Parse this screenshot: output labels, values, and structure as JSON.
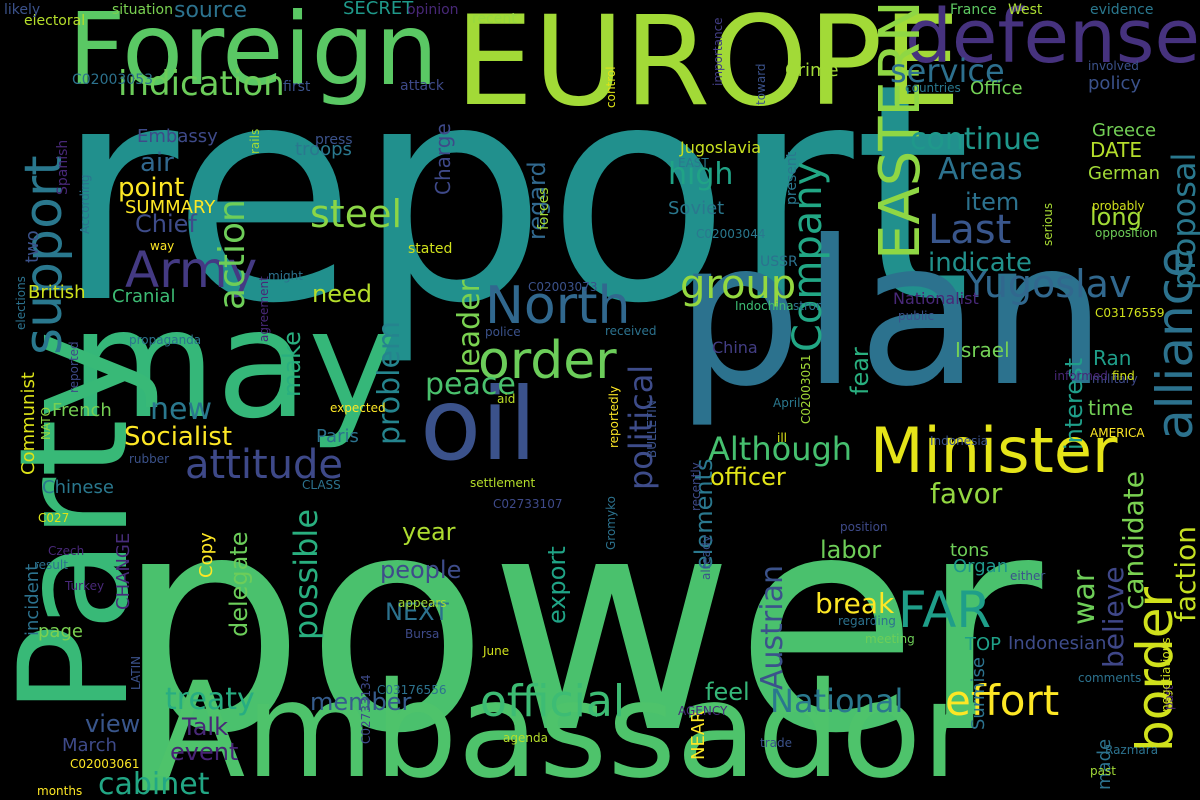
{
  "words": [
    {
      "text": "report",
      "color": "#21908d"
    },
    {
      "text": "power",
      "color": "#4ac16d"
    },
    {
      "text": "plan",
      "color": "#2c728e"
    },
    {
      "text": "may",
      "color": "#35b779"
    },
    {
      "text": "Party",
      "color": "#38b977"
    },
    {
      "text": "Ambassador",
      "color": "#4ec36b"
    },
    {
      "text": "EUROPE",
      "color": "#a2da37"
    },
    {
      "text": "Foreign",
      "color": "#5ac864"
    },
    {
      "text": "oil",
      "color": "#3b528b"
    },
    {
      "text": "defense",
      "color": "#46327e"
    },
    {
      "text": "Minister",
      "color": "#e5e419"
    },
    {
      "text": "EASTERN",
      "color": "#8fd744"
    },
    {
      "text": "North",
      "color": "#31688e"
    },
    {
      "text": "order",
      "color": "#6ccd5a"
    },
    {
      "text": "support",
      "color": "#2a788e"
    },
    {
      "text": "Army",
      "color": "#443a83"
    },
    {
      "text": "FAR",
      "color": "#1f9e89"
    },
    {
      "text": "border",
      "color": "#d0e11c"
    },
    {
      "text": "alliance",
      "color": "#2c728e"
    },
    {
      "text": "official",
      "color": "#3dbc74"
    },
    {
      "text": "effort",
      "color": "#fde725"
    },
    {
      "text": "Company",
      "color": "#22a785"
    },
    {
      "text": "attitude",
      "color": "#3e4989"
    },
    {
      "text": "group",
      "color": "#95d840"
    },
    {
      "text": "Yugoslav",
      "color": "#31688e"
    },
    {
      "text": "Last",
      "color": "#39568c"
    },
    {
      "text": "steel",
      "color": "#8bd646"
    },
    {
      "text": "action",
      "color": "#6ece58"
    },
    {
      "text": "indication",
      "color": "#6ccd5a"
    },
    {
      "text": "service",
      "color": "#2d708e"
    },
    {
      "text": "proposal",
      "color": "#2a788e"
    },
    {
      "text": "political",
      "color": "#3e4c8a"
    },
    {
      "text": "Although",
      "color": "#46c06f"
    },
    {
      "text": "National",
      "color": "#2a788e"
    },
    {
      "text": "possible",
      "color": "#29af7f"
    },
    {
      "text": "problem",
      "color": "#25848e"
    },
    {
      "text": "treaty",
      "color": "#27ad81"
    },
    {
      "text": "cabinet",
      "color": "#22a785"
    },
    {
      "text": "new",
      "color": "#2a788e"
    },
    {
      "text": "high",
      "color": "#20a386"
    },
    {
      "text": "Areas",
      "color": "#2c728e"
    },
    {
      "text": "continue",
      "color": "#1f988b"
    },
    {
      "text": "war",
      "color": "#6ece58"
    },
    {
      "text": "Austrian",
      "color": "#3b528b"
    },
    {
      "text": "peace",
      "color": "#4ac16d"
    },
    {
      "text": "leader",
      "color": "#7ad151"
    },
    {
      "text": "favor",
      "color": "#93d741"
    },
    {
      "text": "break",
      "color": "#fde725"
    },
    {
      "text": "faction",
      "color": "#c5e021"
    },
    {
      "text": "candidate",
      "color": "#7ad151"
    },
    {
      "text": "believe",
      "color": "#3f4788"
    },
    {
      "text": "Socialist",
      "color": "#fde725"
    },
    {
      "text": "indicate",
      "color": "#21918c"
    },
    {
      "text": "point",
      "color": "#fde725"
    },
    {
      "text": "air",
      "color": "#31688e"
    },
    {
      "text": "Chief",
      "color": "#3e4c8a"
    },
    {
      "text": "feel",
      "color": "#35b779"
    },
    {
      "text": "member",
      "color": "#365c8d"
    },
    {
      "text": "view",
      "color": "#39568c"
    },
    {
      "text": "labor",
      "color": "#6ece58"
    },
    {
      "text": "elements",
      "color": "#2a788e"
    },
    {
      "text": "officer",
      "color": "#e2e418"
    },
    {
      "text": "item",
      "color": "#2c728e"
    },
    {
      "text": "Talk",
      "color": "#482878"
    },
    {
      "text": "interest",
      "color": "#1f9e89"
    },
    {
      "text": "long",
      "color": "#a2da37"
    },
    {
      "text": "make",
      "color": "#29af7f"
    },
    {
      "text": "need",
      "color": "#b5de2b"
    },
    {
      "text": "fear",
      "color": "#29af7f"
    },
    {
      "text": "year",
      "color": "#addc30"
    },
    {
      "text": "people",
      "color": "#3e4c8a"
    },
    {
      "text": "NEXT",
      "color": "#2c728e"
    },
    {
      "text": "delegate",
      "color": "#6ccd5a"
    },
    {
      "text": "export",
      "color": "#20a386"
    },
    {
      "text": "regard",
      "color": "#31688e"
    },
    {
      "text": "event",
      "color": "#482475"
    },
    {
      "text": "time",
      "color": "#73d056"
    },
    {
      "text": "DATE",
      "color": "#b5de2b"
    },
    {
      "text": "Greece",
      "color": "#73d056"
    },
    {
      "text": "German",
      "color": "#a2da37"
    },
    {
      "text": "Israel",
      "color": "#73d056"
    },
    {
      "text": "Ran",
      "color": "#1f9e89"
    },
    {
      "text": "Crime",
      "color": "#a2da37"
    },
    {
      "text": "policy",
      "color": "#3b528b"
    },
    {
      "text": "Office",
      "color": "#73d056"
    },
    {
      "text": "troops",
      "color": "#2a788e"
    },
    {
      "text": "Embassy",
      "color": "#3e4a89"
    },
    {
      "text": "SUMMARY",
      "color": "#fde725"
    },
    {
      "text": "source",
      "color": "#2c728e"
    },
    {
      "text": "SECRET",
      "color": "#1f998a"
    },
    {
      "text": "Charge",
      "color": "#3e4989"
    },
    {
      "text": "Soviet",
      "color": "#2a788e"
    },
    {
      "text": "British",
      "color": "#d0e11c"
    },
    {
      "text": "Cranial",
      "color": "#3dbc74"
    },
    {
      "text": "French",
      "color": "#75d054"
    },
    {
      "text": "Paris",
      "color": "#2c728e"
    },
    {
      "text": "Chinese",
      "color": "#2a788e"
    },
    {
      "text": "Copy",
      "color": "#fde725"
    },
    {
      "text": "CHANGE",
      "color": "#472c7a"
    },
    {
      "text": "incident",
      "color": "#2c728e"
    },
    {
      "text": "page",
      "color": "#7ad151"
    },
    {
      "text": "March",
      "color": "#3e4a89"
    },
    {
      "text": "Organ",
      "color": "#1f988b"
    },
    {
      "text": "tons",
      "color": "#6ece58"
    },
    {
      "text": "made",
      "color": "#2c728e"
    },
    {
      "text": "Surmise",
      "color": "#2c728e"
    },
    {
      "text": "Indonesian",
      "color": "#3e4c8a"
    },
    {
      "text": "TOP",
      "color": "#1fa188"
    },
    {
      "text": "NEAR",
      "color": "#fde725"
    },
    {
      "text": "two",
      "color": "#3b528b"
    },
    {
      "text": "Communist",
      "color": "#dde318"
    },
    {
      "text": "Nationalist",
      "color": "#482878"
    },
    {
      "text": "China",
      "color": "#433e85"
    },
    {
      "text": "USSR",
      "color": "#2c728e"
    },
    {
      "text": "Jugoslavia",
      "color": "#c8e020"
    },
    {
      "text": "EAST",
      "color": "#2a788e"
    },
    {
      "text": "electoral",
      "color": "#b5de2b"
    },
    {
      "text": "France",
      "color": "#5ec962"
    },
    {
      "text": "West",
      "color": "#aadc32"
    },
    {
      "text": "evidence",
      "color": "#2a788e"
    },
    {
      "text": "situation",
      "color": "#7ad151"
    },
    {
      "text": "opinion",
      "color": "#482878"
    },
    {
      "text": "recent",
      "color": "#95d840"
    },
    {
      "text": "likely",
      "color": "#3b528b"
    },
    {
      "text": "Spanish",
      "color": "#482878"
    },
    {
      "text": "C02003053",
      "color": "#2c728e"
    },
    {
      "text": "first",
      "color": "#3b528b"
    },
    {
      "text": "attack",
      "color": "#3e4a89"
    },
    {
      "text": "control",
      "color": "#dde318"
    },
    {
      "text": "importance",
      "color": "#433e85"
    },
    {
      "text": "toward",
      "color": "#3b528b"
    },
    {
      "text": "countries",
      "color": "#2a788e"
    },
    {
      "text": "involved",
      "color": "#3b528b"
    },
    {
      "text": "probably",
      "color": "#d0e11c"
    },
    {
      "text": "serious",
      "color": "#a8db34"
    },
    {
      "text": "opposition",
      "color": "#6ece58"
    },
    {
      "text": "rails",
      "color": "#a2da37"
    },
    {
      "text": "press",
      "color": "#3b528b"
    },
    {
      "text": "forces",
      "color": "#a2da37"
    },
    {
      "text": "present",
      "color": "#2a788e"
    },
    {
      "text": "C02003044",
      "color": "#2a788e"
    },
    {
      "text": "way",
      "color": "#fde725"
    },
    {
      "text": "stated",
      "color": "#d0e11c"
    },
    {
      "text": "might",
      "color": "#2c728e"
    },
    {
      "text": "C02003073",
      "color": "#3b528b"
    },
    {
      "text": "According",
      "color": "#2c728e"
    },
    {
      "text": "elections",
      "color": "#2c728e"
    },
    {
      "text": "propaganda",
      "color": "#2c728e"
    },
    {
      "text": "agreement",
      "color": "#482878"
    },
    {
      "text": "police",
      "color": "#3b528b"
    },
    {
      "text": "received",
      "color": "#2c728e"
    },
    {
      "text": "Indochina",
      "color": "#3dbc74"
    },
    {
      "text": "strong",
      "color": "#2c728e"
    },
    {
      "text": "public",
      "color": "#3b528b"
    },
    {
      "text": "C03176559",
      "color": "#d0e11c"
    },
    {
      "text": "C02003051",
      "color": "#a2da37"
    },
    {
      "text": "military",
      "color": "#3e4a89"
    },
    {
      "text": "NATO",
      "color": "#95d840"
    },
    {
      "text": "reported",
      "color": "#3e4a89"
    },
    {
      "text": "expected",
      "color": "#fde725"
    },
    {
      "text": "aid",
      "color": "#bddf26"
    },
    {
      "text": "BULLETIN",
      "color": "#3b528b"
    },
    {
      "text": "reportedly",
      "color": "#fde725"
    },
    {
      "text": "April",
      "color": "#2a788e"
    },
    {
      "text": "ill",
      "color": "#dde318"
    },
    {
      "text": "Indonesia",
      "color": "#3b528b"
    },
    {
      "text": "AMERICA",
      "color": "#fde725"
    },
    {
      "text": "rubber",
      "color": "#3b528b"
    },
    {
      "text": "CLASS",
      "color": "#2c728e"
    },
    {
      "text": "settlement",
      "color": "#b5de2b"
    },
    {
      "text": "recently",
      "color": "#3e4a89"
    },
    {
      "text": "C02733107",
      "color": "#3e4a89"
    },
    {
      "text": "C027",
      "color": "#dde318"
    },
    {
      "text": "Czech",
      "color": "#482878"
    },
    {
      "text": "result",
      "color": "#2c728e"
    },
    {
      "text": "Turkey",
      "color": "#482878"
    },
    {
      "text": "appears",
      "color": "#a2da37"
    },
    {
      "text": "Bursa",
      "color": "#3e4a89"
    },
    {
      "text": "Gromyko",
      "color": "#2c728e"
    },
    {
      "text": "already",
      "color": "#3b528b"
    },
    {
      "text": "position",
      "color": "#3e4a89"
    },
    {
      "text": "regarding",
      "color": "#2c728e"
    },
    {
      "text": "meeting",
      "color": "#6ece58"
    },
    {
      "text": "either",
      "color": "#3b528b"
    },
    {
      "text": "part",
      "color": "#482878"
    },
    {
      "text": "June",
      "color": "#d0e11c"
    },
    {
      "text": "C03176556",
      "color": "#2c728e"
    },
    {
      "text": "C02733134",
      "color": "#3e4a89"
    },
    {
      "text": "LATIN",
      "color": "#3b528b"
    },
    {
      "text": "C02003061",
      "color": "#fde725"
    },
    {
      "text": "months",
      "color": "#fde725"
    },
    {
      "text": "agenda",
      "color": "#b5de2b"
    },
    {
      "text": "AGENCY",
      "color": "#472c7a"
    },
    {
      "text": "trade",
      "color": "#3b528b"
    },
    {
      "text": "comments",
      "color": "#2c728e"
    },
    {
      "text": "negotiations",
      "color": "#d0e11c"
    },
    {
      "text": "Razmara",
      "color": "#2c728e"
    },
    {
      "text": "past",
      "color": "#a2da37"
    },
    {
      "text": "informed",
      "color": "#482878"
    },
    {
      "text": "find",
      "color": "#d0e11c"
    }
  ]
}
